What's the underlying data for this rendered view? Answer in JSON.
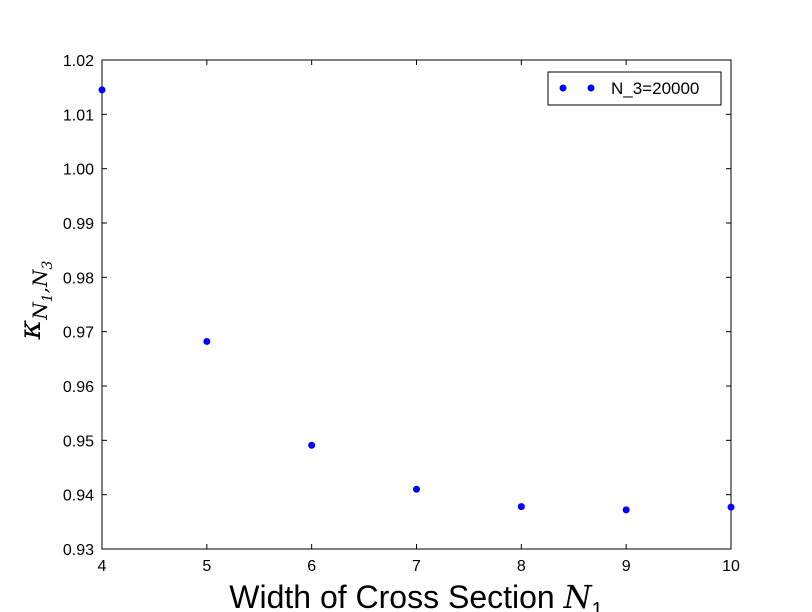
{
  "chart_data": {
    "type": "scatter",
    "title": "",
    "xlabel_text": "Width of Cross Section ",
    "xlabel_math": "N",
    "xlabel_sub": "1",
    "ylabel_kappa": "κ",
    "ylabel_sub_text": "N",
    "ylabel_sub1": "1",
    "ylabel_sep": ",N",
    "ylabel_sub3": "3",
    "xlim": [
      4,
      10
    ],
    "ylim": [
      0.93,
      1.02
    ],
    "xticks": [
      4,
      5,
      6,
      7,
      8,
      9,
      10
    ],
    "yticks": [
      0.93,
      0.94,
      0.95,
      0.96,
      0.97,
      0.98,
      0.99,
      1.0,
      1.01,
      1.02
    ],
    "grid": false,
    "legend_position": "top-right",
    "series": [
      {
        "name": "N_3=20000",
        "color": "#0000ff",
        "x": [
          4,
          5,
          6,
          7,
          8,
          9,
          10
        ],
        "y": [
          1.0145,
          0.9682,
          0.9491,
          0.941,
          0.9378,
          0.9372,
          0.9377
        ]
      }
    ]
  }
}
